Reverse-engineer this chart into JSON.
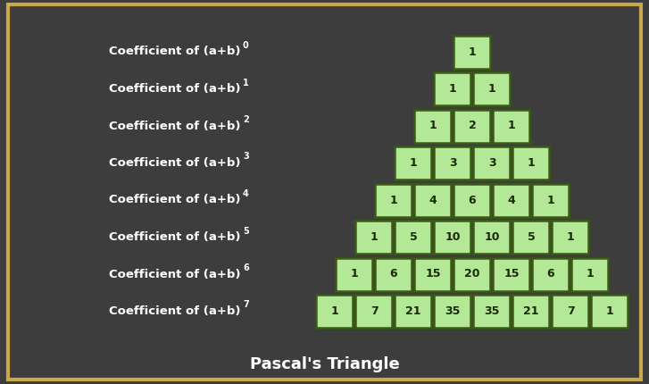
{
  "title": "Pascal's Triangle",
  "background_color": "#3d3d3d",
  "border_color": "#c8a84b",
  "cell_fill_color": "#b3e896",
  "cell_edge_color": "#3a5a15",
  "cell_text_color": "#1a2a05",
  "label_text_color": "#ffffff",
  "title_text_color": "#ffffff",
  "rows": [
    [
      1
    ],
    [
      1,
      1
    ],
    [
      1,
      2,
      1
    ],
    [
      1,
      3,
      3,
      1
    ],
    [
      1,
      4,
      6,
      4,
      1
    ],
    [
      1,
      5,
      10,
      10,
      5,
      1
    ],
    [
      1,
      6,
      15,
      20,
      15,
      6,
      1
    ],
    [
      1,
      7,
      21,
      35,
      35,
      21,
      7,
      1
    ]
  ],
  "label_superscripts": [
    "0",
    "1",
    "2",
    "3",
    "4",
    "5",
    "6",
    "7"
  ],
  "figsize": [
    7.27,
    4.3
  ],
  "dpi": 100
}
